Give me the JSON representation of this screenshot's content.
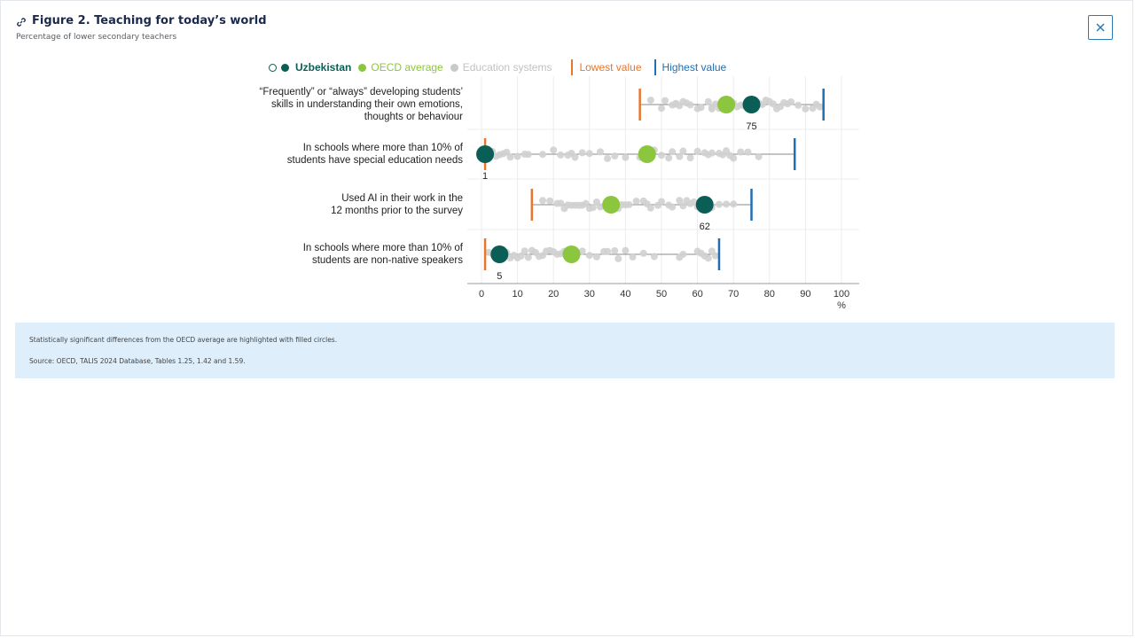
{
  "figure": {
    "title": "Figure 2. Teaching for today’s world",
    "subtitle": "Percentage of lower secondary teachers",
    "close_label": "×"
  },
  "legend": {
    "uzbekistan": "Uzbekistan",
    "oecd": "OECD average",
    "education_systems": "Education systems",
    "lowest": "Lowest value",
    "highest": "Highest value"
  },
  "note": {
    "significance": "Statistically significant differences from the OECD average are highlighted with filled circles.",
    "source": "Source: OECD, TALIS 2024 Database, Tables 1.25, 1.42 and 1.59."
  },
  "colors": {
    "uzbekistan": "#0a5e55",
    "oecd": "#8cc63f",
    "education_systems": "#d0d0d0",
    "lowest": "#e8762c",
    "highest": "#1f6fb5"
  },
  "chart_data": {
    "type": "scatter",
    "title": "Figure 2. Teaching for today’s world",
    "xlabel": "%",
    "xlim": [
      0,
      100
    ],
    "xticks": [
      0,
      10,
      20,
      30,
      40,
      50,
      60,
      70,
      80,
      90,
      100
    ],
    "grid": true,
    "rows": [
      {
        "label": "“Frequently” or “always” developing students’ skills in understanding their own emotions, thoughts or behaviour",
        "label_lines": [
          "“Frequently” or “always” developing students’",
          "skills in understanding their own emotions,",
          "thoughts or behaviour"
        ],
        "uzbekistan": 75,
        "uzbekistan_label": "75",
        "oecd_average": 68,
        "lowest": 44,
        "highest": 95,
        "education_systems": [
          47,
          50,
          51,
          53,
          54,
          54,
          55,
          56,
          57,
          58,
          60,
          61,
          63,
          64,
          64,
          65,
          66,
          67,
          69,
          70,
          71,
          72,
          73,
          74,
          76,
          77,
          78,
          79,
          80,
          81,
          82,
          83,
          84,
          85,
          86,
          88,
          90,
          92,
          93,
          94
        ]
      },
      {
        "label": "In schools where more than 10% of students have special education needs",
        "label_lines": [
          "In schools where more than 10% of",
          "students have special education needs"
        ],
        "uzbekistan": 1,
        "uzbekistan_label": "1",
        "oecd_average": 46,
        "lowest": 1,
        "highest": 87,
        "education_systems": [
          3,
          4,
          5,
          6,
          7,
          8,
          10,
          12,
          13,
          17,
          20,
          22,
          24,
          25,
          26,
          28,
          30,
          33,
          35,
          37,
          40,
          44,
          48,
          50,
          52,
          53,
          55,
          56,
          58,
          60,
          62,
          63,
          64,
          66,
          67,
          68,
          69,
          70,
          72,
          74,
          77
        ]
      },
      {
        "label": "Used AI in their work in the 12 months prior to the survey",
        "label_lines": [
          "Used AI in their work in the",
          "12 months prior to the survey"
        ],
        "uzbekistan": 62,
        "uzbekistan_label": "62",
        "oecd_average": 36,
        "lowest": 14,
        "highest": 75,
        "education_systems": [
          17,
          19,
          21,
          22,
          23,
          24,
          25,
          26,
          27,
          28,
          29,
          30,
          31,
          32,
          33,
          34,
          35,
          37,
          38,
          39,
          40,
          41,
          43,
          45,
          46,
          47,
          49,
          50,
          52,
          53,
          55,
          56,
          57,
          58,
          59,
          60,
          61,
          64,
          66,
          68,
          70
        ]
      },
      {
        "label": "In schools where more than 10% of students are non-native speakers",
        "label_lines": [
          "In schools where more than 10% of",
          "students are non-native speakers"
        ],
        "uzbekistan": 5,
        "uzbekistan_label": "5",
        "oecd_average": 25,
        "lowest": 1,
        "highest": 66,
        "education_systems": [
          2,
          3,
          7,
          8,
          9,
          10,
          11,
          12,
          13,
          14,
          15,
          16,
          17,
          18,
          19,
          20,
          21,
          22,
          23,
          26,
          28,
          30,
          32,
          34,
          35,
          37,
          38,
          40,
          42,
          45,
          48,
          55,
          56,
          60,
          61,
          62,
          63,
          64,
          65
        ]
      }
    ]
  }
}
